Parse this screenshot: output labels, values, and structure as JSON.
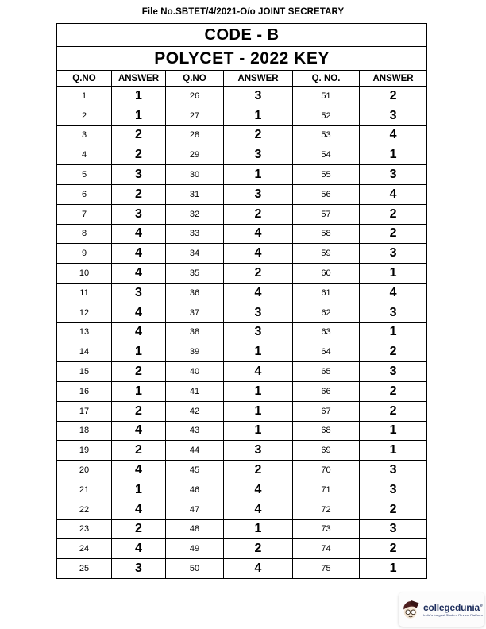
{
  "page": {
    "file_no_line": "File No.SBTET/4/2021-O/o JOINT SECRETARY"
  },
  "table": {
    "code_title": "CODE - B",
    "key_title": "POLYCET - 2022 KEY",
    "headers": [
      "Q.NO",
      "ANSWER",
      "Q.NO",
      "ANSWER",
      "Q. NO.",
      "ANSWER"
    ],
    "rows": [
      {
        "q1": "1",
        "a1": "1",
        "q2": "26",
        "a2": "3",
        "q3": "51",
        "a3": "2"
      },
      {
        "q1": "2",
        "a1": "1",
        "q2": "27",
        "a2": "1",
        "q3": "52",
        "a3": "3"
      },
      {
        "q1": "3",
        "a1": "2",
        "q2": "28",
        "a2": "2",
        "q3": "53",
        "a3": "4"
      },
      {
        "q1": "4",
        "a1": "2",
        "q2": "29",
        "a2": "3",
        "q3": "54",
        "a3": "1"
      },
      {
        "q1": "5",
        "a1": "3",
        "q2": "30",
        "a2": "1",
        "q3": "55",
        "a3": "3"
      },
      {
        "q1": "6",
        "a1": "2",
        "q2": "31",
        "a2": "3",
        "q3": "56",
        "a3": "4"
      },
      {
        "q1": "7",
        "a1": "3",
        "q2": "32",
        "a2": "2",
        "q3": "57",
        "a3": "2"
      },
      {
        "q1": "8",
        "a1": "4",
        "q2": "33",
        "a2": "4",
        "q3": "58",
        "a3": "2"
      },
      {
        "q1": "9",
        "a1": "4",
        "q2": "34",
        "a2": "4",
        "q3": "59",
        "a3": "3"
      },
      {
        "q1": "10",
        "a1": "4",
        "q2": "35",
        "a2": "2",
        "q3": "60",
        "a3": "1"
      },
      {
        "q1": "11",
        "a1": "3",
        "q2": "36",
        "a2": "4",
        "q3": "61",
        "a3": "4"
      },
      {
        "q1": "12",
        "a1": "4",
        "q2": "37",
        "a2": "3",
        "q3": "62",
        "a3": "3"
      },
      {
        "q1": "13",
        "a1": "4",
        "q2": "38",
        "a2": "3",
        "q3": "63",
        "a3": "1"
      },
      {
        "q1": "14",
        "a1": "1",
        "q2": "39",
        "a2": "1",
        "q3": "64",
        "a3": "2"
      },
      {
        "q1": "15",
        "a1": "2",
        "q2": "40",
        "a2": "4",
        "q3": "65",
        "a3": "3"
      },
      {
        "q1": "16",
        "a1": "1",
        "q2": "41",
        "a2": "1",
        "q3": "66",
        "a3": "2"
      },
      {
        "q1": "17",
        "a1": "2",
        "q2": "42",
        "a2": "1",
        "q3": "67",
        "a3": "2"
      },
      {
        "q1": "18",
        "a1": "4",
        "q2": "43",
        "a2": "1",
        "q3": "68",
        "a3": "1"
      },
      {
        "q1": "19",
        "a1": "2",
        "q2": "44",
        "a2": "3",
        "q3": "69",
        "a3": "1"
      },
      {
        "q1": "20",
        "a1": "4",
        "q2": "45",
        "a2": "2",
        "q3": "70",
        "a3": "3"
      },
      {
        "q1": "21",
        "a1": "1",
        "q2": "46",
        "a2": "4",
        "q3": "71",
        "a3": "3"
      },
      {
        "q1": "22",
        "a1": "4",
        "q2": "47",
        "a2": "4",
        "q3": "72",
        "a3": "2"
      },
      {
        "q1": "23",
        "a1": "2",
        "q2": "48",
        "a2": "1",
        "q3": "73",
        "a3": "3"
      },
      {
        "q1": "24",
        "a1": "4",
        "q2": "49",
        "a2": "2",
        "q3": "74",
        "a3": "2"
      },
      {
        "q1": "25",
        "a1": "3",
        "q2": "50",
        "a2": "4",
        "q3": "75",
        "a3": "1"
      }
    ]
  },
  "logo": {
    "brand": "collegedunia",
    "registered": "®",
    "tagline": "India's Largest Student Review Platform",
    "brand_color": "#1c2d5c"
  },
  "icons": {
    "mascot": "collegedunia-student-mascot"
  }
}
